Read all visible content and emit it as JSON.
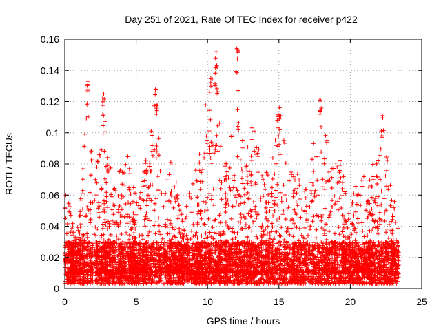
{
  "chart_data": {
    "type": "scatter",
    "title": "Day 251 of 2021, Rate Of TEC Index for receiver p422",
    "xlabel": "GPS time / hours",
    "ylabel": "ROTI / TECUs",
    "xlim": [
      0,
      25
    ],
    "ylim": [
      0,
      0.16
    ],
    "x_ticks": [
      0,
      5,
      10,
      15,
      20,
      25
    ],
    "x_tick_labels": [
      "0",
      "5",
      "10",
      "15",
      "20",
      "25"
    ],
    "y_ticks": [
      0,
      0.02,
      0.04,
      0.06,
      0.08,
      0.1,
      0.12,
      0.14,
      0.16
    ],
    "y_tick_labels": [
      "0",
      "0.02",
      "0.04",
      "0.06",
      "0.08",
      "0.1",
      "0.12",
      "0.14",
      "0.16"
    ],
    "grid": true,
    "marker": "+",
    "series": [
      {
        "name": "ROTI",
        "color": "#ff0000",
        "x_range": [
          0,
          23.4
        ],
        "baseline_range": [
          0.003,
          0.03
        ],
        "activity_envelope": [
          {
            "x": 0.0,
            "ymax": 0.07
          },
          {
            "x": 0.3,
            "ymax": 0.055
          },
          {
            "x": 1.0,
            "ymax": 0.045
          },
          {
            "x": 1.6,
            "ymax": 0.133
          },
          {
            "x": 2.0,
            "ymax": 0.07
          },
          {
            "x": 2.7,
            "ymax": 0.125
          },
          {
            "x": 3.5,
            "ymax": 0.065
          },
          {
            "x": 4.3,
            "ymax": 0.092
          },
          {
            "x": 5.0,
            "ymax": 0.06
          },
          {
            "x": 6.0,
            "ymax": 0.1
          },
          {
            "x": 6.4,
            "ymax": 0.128
          },
          {
            "x": 7.0,
            "ymax": 0.075
          },
          {
            "x": 7.5,
            "ymax": 0.085
          },
          {
            "x": 8.3,
            "ymax": 0.045
          },
          {
            "x": 9.5,
            "ymax": 0.09
          },
          {
            "x": 10.0,
            "ymax": 0.135
          },
          {
            "x": 10.6,
            "ymax": 0.152
          },
          {
            "x": 11.0,
            "ymax": 0.08
          },
          {
            "x": 11.6,
            "ymax": 0.09
          },
          {
            "x": 12.1,
            "ymax": 0.154
          },
          {
            "x": 12.6,
            "ymax": 0.08
          },
          {
            "x": 13.2,
            "ymax": 0.11
          },
          {
            "x": 14.0,
            "ymax": 0.07
          },
          {
            "x": 15.0,
            "ymax": 0.116
          },
          {
            "x": 16.0,
            "ymax": 0.075
          },
          {
            "x": 17.0,
            "ymax": 0.07
          },
          {
            "x": 17.9,
            "ymax": 0.121
          },
          {
            "x": 18.5,
            "ymax": 0.09
          },
          {
            "x": 19.3,
            "ymax": 0.085
          },
          {
            "x": 20.0,
            "ymax": 0.045
          },
          {
            "x": 20.6,
            "ymax": 0.09
          },
          {
            "x": 21.2,
            "ymax": 0.06
          },
          {
            "x": 21.8,
            "ymax": 0.108
          },
          {
            "x": 22.2,
            "ymax": 0.111
          },
          {
            "x": 22.8,
            "ymax": 0.07
          },
          {
            "x": 23.4,
            "ymax": 0.045
          }
        ],
        "annotated_peaks": [
          {
            "x": 1.6,
            "y": 0.133
          },
          {
            "x": 2.7,
            "y": 0.125
          },
          {
            "x": 6.4,
            "y": 0.128
          },
          {
            "x": 10.2,
            "y": 0.135
          },
          {
            "x": 10.6,
            "y": 0.152
          },
          {
            "x": 12.1,
            "y": 0.154
          },
          {
            "x": 15.0,
            "y": 0.116
          },
          {
            "x": 17.9,
            "y": 0.121
          },
          {
            "x": 22.2,
            "y": 0.111
          }
        ]
      }
    ]
  }
}
